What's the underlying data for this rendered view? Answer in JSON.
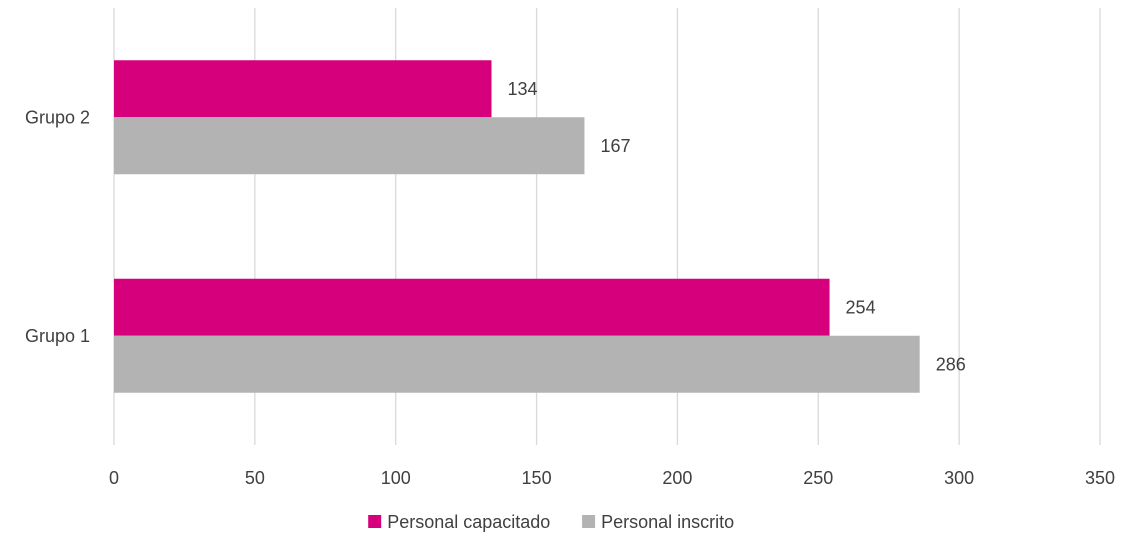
{
  "chart_data": {
    "type": "bar",
    "orientation": "horizontal",
    "categories": [
      "Grupo 1",
      "Grupo 2"
    ],
    "series": [
      {
        "name": "Personal capacitado",
        "color": "#d6007d",
        "values": [
          254,
          134
        ]
      },
      {
        "name": "Personal inscrito",
        "color": "#b3b3b3",
        "values": [
          286,
          167
        ]
      }
    ],
    "xlim": [
      0,
      350
    ],
    "xticks": [
      0,
      50,
      100,
      150,
      200,
      250,
      300,
      350
    ],
    "grid": "vertical",
    "legend_position": "bottom",
    "data_labels": true
  }
}
